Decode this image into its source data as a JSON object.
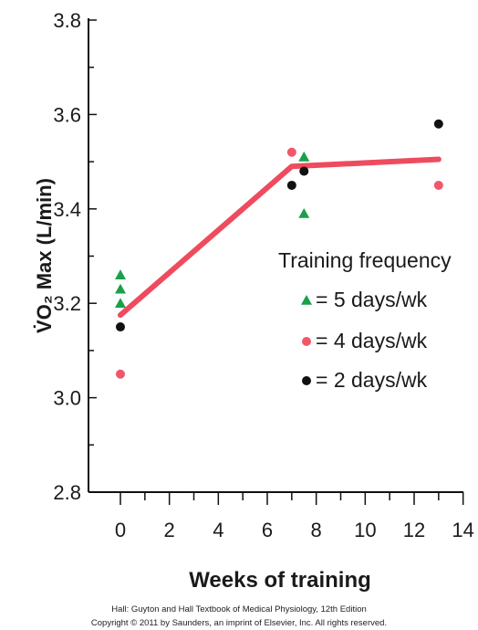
{
  "chart_data": {
    "type": "scatter",
    "ylabel": "V̇O₂ Max (L/min)",
    "xlabel": "Weeks of training",
    "xlim": [
      0,
      14
    ],
    "ylim": [
      2.8,
      3.8
    ],
    "x_ticks": [
      "0",
      "2",
      "4",
      "6",
      "8",
      "10",
      "12",
      "14"
    ],
    "y_ticks": [
      "2.8",
      "3.0",
      "3.2",
      "3.4",
      "3.6",
      "3.8"
    ],
    "legend": {
      "title": "Training frequency",
      "placement": "right",
      "entries": [
        "= 5 days/wk",
        "= 4 days/wk",
        "= 2 days/wk"
      ]
    },
    "series": [
      {
        "name": "= 5 days/wk",
        "marker": "triangle",
        "color": "#1aa04a",
        "points": [
          [
            0,
            3.26
          ],
          [
            0,
            3.23
          ],
          [
            0,
            3.2
          ],
          [
            7.5,
            3.51
          ],
          [
            7.5,
            3.39
          ]
        ]
      },
      {
        "name": "= 4 days/wk",
        "marker": "circle",
        "color": "#f0586a",
        "points": [
          [
            0,
            3.05
          ],
          [
            7,
            3.52
          ],
          [
            13,
            3.45
          ]
        ]
      },
      {
        "name": "= 2 days/wk",
        "marker": "circle",
        "color": "#111111",
        "points": [
          [
            0,
            3.15
          ],
          [
            7,
            3.45
          ],
          [
            7.5,
            3.48
          ],
          [
            13,
            3.58
          ]
        ]
      }
    ],
    "trend_line": {
      "color": "#ef4b5e",
      "points": [
        [
          0,
          3.175
        ],
        [
          7,
          3.49
        ],
        [
          13,
          3.505
        ]
      ]
    }
  },
  "caption": {
    "line1": "Hall: Guyton and Hall Textbook of Medical Physiology, 12th Edition",
    "line2": "Copyright © 2011 by Saunders, an imprint of Elsevier, Inc. All rights reserved."
  }
}
